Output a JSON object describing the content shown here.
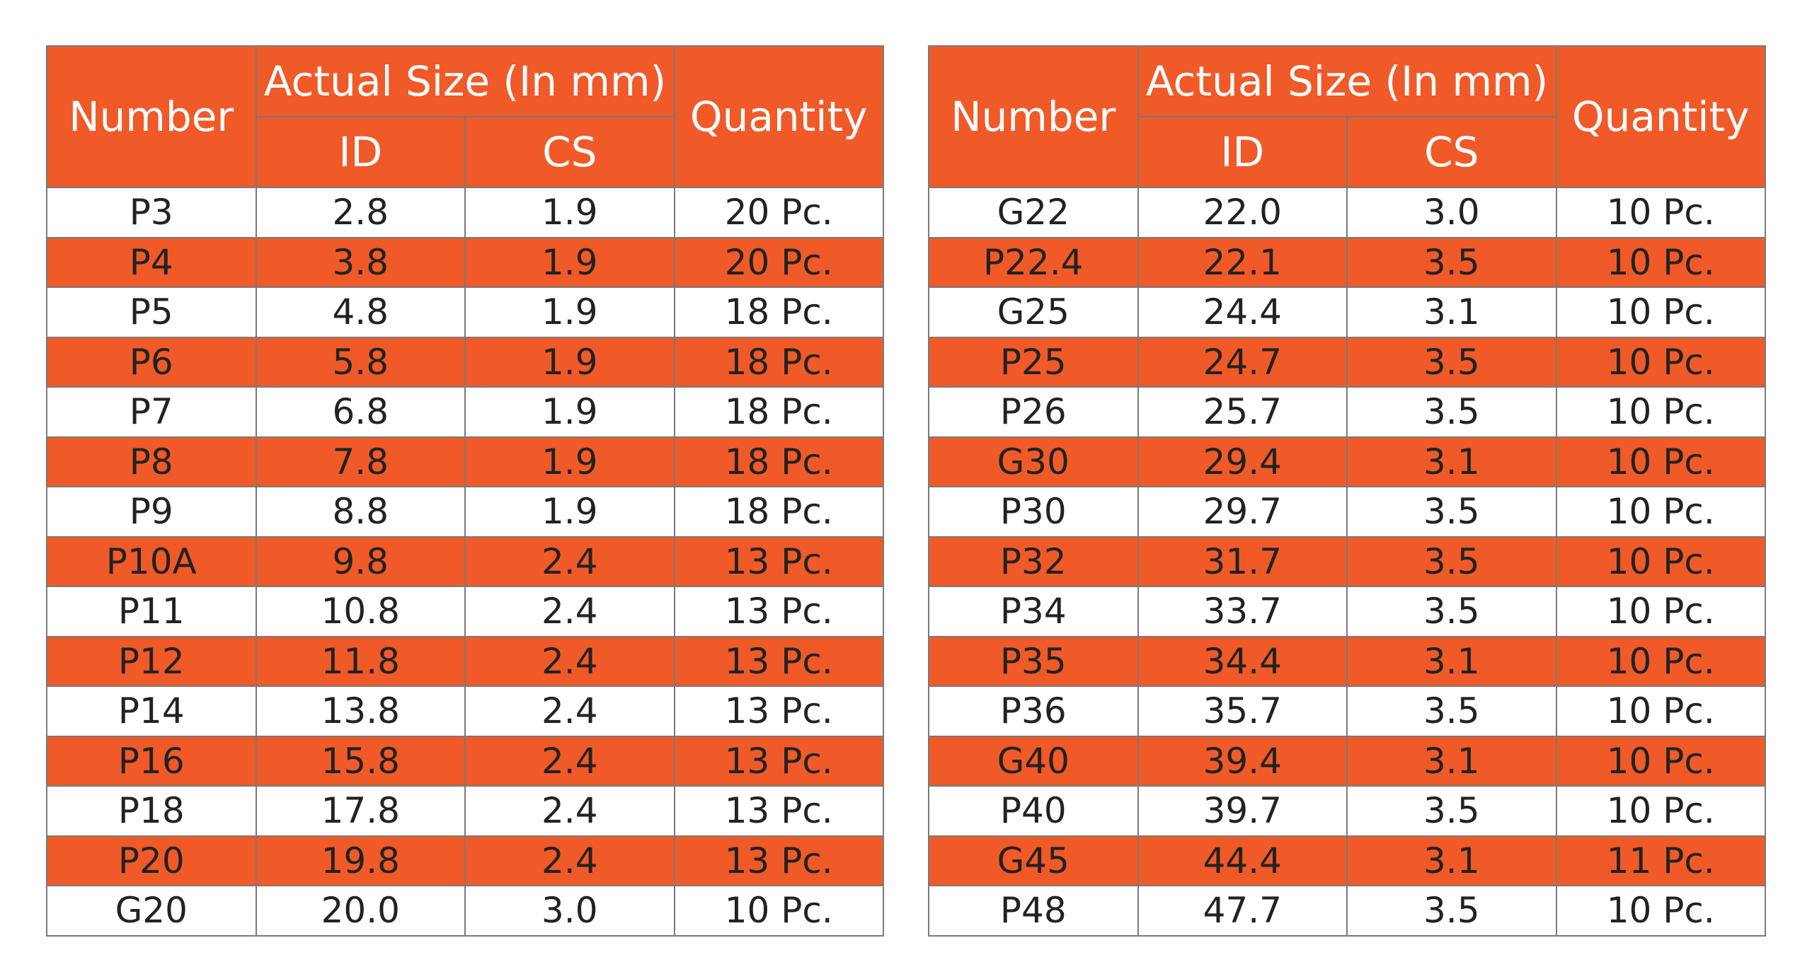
{
  "tables": [
    {
      "header": {
        "number": "Number",
        "group": "Actual Size (In mm)",
        "id": "ID",
        "cs": "CS",
        "quantity": "Quantity"
      },
      "rows": [
        [
          "P3",
          "2.8",
          "1.9",
          "20 Pc."
        ],
        [
          "P4",
          "3.8",
          "1.9",
          "20 Pc."
        ],
        [
          "P5",
          "4.8",
          "1.9",
          "18 Pc."
        ],
        [
          "P6",
          "5.8",
          "1.9",
          "18 Pc."
        ],
        [
          "P7",
          "6.8",
          "1.9",
          "18 Pc."
        ],
        [
          "P8",
          "7.8",
          "1.9",
          "18 Pc."
        ],
        [
          "P9",
          "8.8",
          "1.9",
          "18 Pc."
        ],
        [
          "P10A",
          "9.8",
          "2.4",
          "13 Pc."
        ],
        [
          "P11",
          "10.8",
          "2.4",
          "13 Pc."
        ],
        [
          "P12",
          "11.8",
          "2.4",
          "13 Pc."
        ],
        [
          "P14",
          "13.8",
          "2.4",
          "13 Pc."
        ],
        [
          "P16",
          "15.8",
          "2.4",
          "13 Pc."
        ],
        [
          "P18",
          "17.8",
          "2.4",
          "13 Pc."
        ],
        [
          "P20",
          "19.8",
          "2.4",
          "13 Pc."
        ],
        [
          "G20",
          "20.0",
          "3.0",
          "10 Pc."
        ]
      ]
    },
    {
      "header": {
        "number": "Number",
        "group": "Actual Size (In mm)",
        "id": "ID",
        "cs": "CS",
        "quantity": "Quantity"
      },
      "rows": [
        [
          "G22",
          "22.0",
          "3.0",
          "10 Pc."
        ],
        [
          "P22.4",
          "22.1",
          "3.5",
          "10 Pc."
        ],
        [
          "G25",
          "24.4",
          "3.1",
          "10 Pc."
        ],
        [
          "P25",
          "24.7",
          "3.5",
          "10 Pc."
        ],
        [
          "P26",
          "25.7",
          "3.5",
          "10 Pc."
        ],
        [
          "G30",
          "29.4",
          "3.1",
          "10 Pc."
        ],
        [
          "P30",
          "29.7",
          "3.5",
          "10 Pc."
        ],
        [
          "P32",
          "31.7",
          "3.5",
          "10 Pc."
        ],
        [
          "P34",
          "33.7",
          "3.5",
          "10 Pc."
        ],
        [
          "P35",
          "34.4",
          "3.1",
          "10 Pc."
        ],
        [
          "P36",
          "35.7",
          "3.5",
          "10 Pc."
        ],
        [
          "G40",
          "39.4",
          "3.1",
          "10 Pc."
        ],
        [
          "P40",
          "39.7",
          "3.5",
          "10 Pc."
        ],
        [
          "G45",
          "44.4",
          "3.1",
          "11 Pc."
        ],
        [
          "P48",
          "47.7",
          "3.5",
          "10 Pc."
        ]
      ]
    }
  ]
}
